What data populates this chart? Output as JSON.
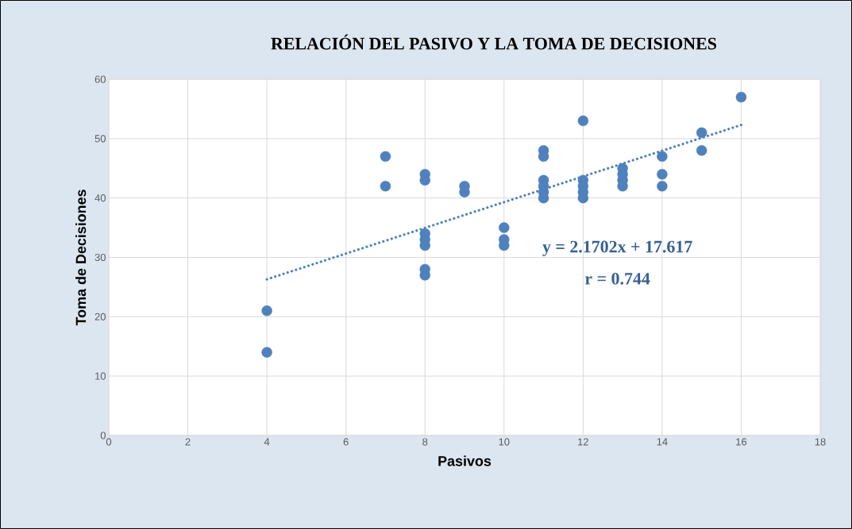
{
  "chart_data": {
    "type": "scatter",
    "title": "RELACIÓN DEL PASIVO Y LA TOMA DE DECISIONES",
    "xlabel": "Pasivos",
    "ylabel": "Toma de Decisiones",
    "xlim": [
      0,
      18
    ],
    "xticks": [
      0,
      2,
      4,
      6,
      8,
      10,
      12,
      14,
      16,
      18
    ],
    "ylim": [
      0,
      60
    ],
    "yticks": [
      0,
      10,
      20,
      30,
      40,
      50,
      60
    ],
    "grid": true,
    "series": [
      {
        "color": "#4f81bd",
        "marker": "circle",
        "x": [
          4,
          4,
          7,
          7,
          8,
          8,
          8,
          8,
          8,
          8,
          8,
          9,
          9,
          10,
          10,
          10,
          11,
          11,
          11,
          11,
          11,
          11,
          12,
          12,
          12,
          12,
          12,
          13,
          13,
          13,
          13,
          14,
          14,
          14,
          15,
          15,
          16
        ],
        "values": [
          21,
          14,
          47,
          42,
          44,
          43,
          34,
          33,
          32,
          28,
          27,
          42,
          41,
          35,
          33,
          32,
          48,
          47,
          43,
          42,
          41,
          40,
          53,
          43,
          42,
          41,
          40,
          45,
          44,
          43,
          42,
          47,
          44,
          42,
          51,
          48,
          57
        ]
      },
      {
        "type": "line",
        "color": "#4f81bd",
        "line_style": "dotted",
        "marker": "none",
        "x": [
          4,
          16
        ],
        "values": [
          26.3,
          52.3
        ]
      }
    ],
    "annotations": [
      "y = 2.1702x + 17.617",
      "r = 0.744"
    ]
  }
}
